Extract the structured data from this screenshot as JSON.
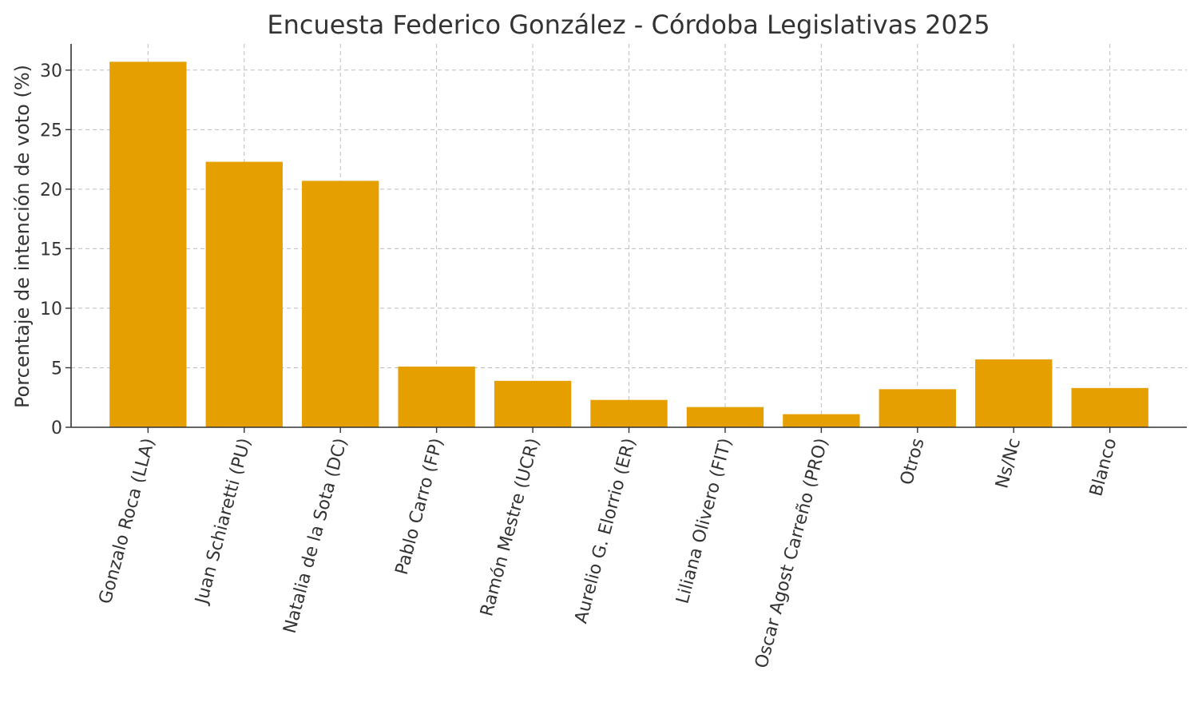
{
  "chart_data": {
    "type": "bar",
    "title": "Encuesta Federico González - Córdoba Legislativas 2025",
    "xlabel": "",
    "ylabel": "Porcentaje de intención de voto (%)",
    "categories": [
      "Gonzalo Roca (LLA)",
      "Juan Schiaretti (PU)",
      "Natalia de la Sota (DC)",
      "Pablo Carro (FP)",
      "Ramón Mestre (UCR)",
      "Aurelio G. Elorrio (ER)",
      "Liliana Olivero (FIT)",
      "Oscar Agost Carreño (PRO)",
      "Otros",
      "Ns/Nc",
      "Blanco"
    ],
    "values": [
      30.7,
      22.3,
      20.7,
      5.1,
      3.9,
      2.3,
      1.7,
      1.1,
      3.2,
      5.7,
      3.3
    ],
    "ylim": [
      0,
      32.2
    ],
    "yticks": [
      "0",
      "5",
      "10",
      "15",
      "20",
      "25",
      "30"
    ],
    "bar_color": "#E69F00",
    "grid": true
  }
}
